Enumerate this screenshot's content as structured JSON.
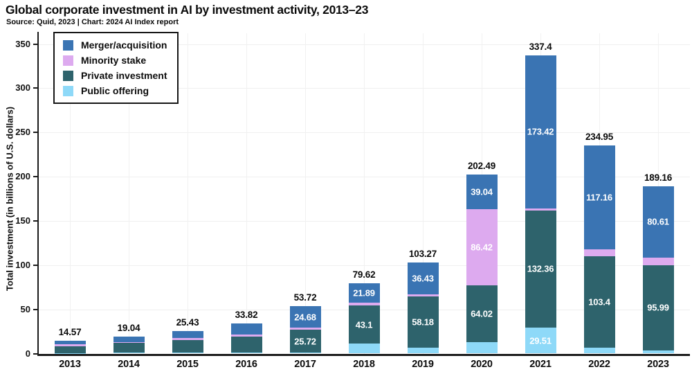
{
  "header": {
    "title": "Global corporate investment in AI by investment activity, 2013–23",
    "subtitle": "Source: Quid, 2023 | Chart: 2024 AI Index report"
  },
  "chart_data": {
    "type": "bar",
    "stacked": true,
    "title": "Global corporate investment in AI by investment activity, 2013–23",
    "xlabel": "",
    "ylabel": "Total investment (in billions of U.S. dollars)",
    "ylim": [
      0,
      350
    ],
    "yticks": [
      0,
      50,
      100,
      150,
      200,
      250,
      300,
      350
    ],
    "grid": "faint horizontal gridlines every 50 and faint vertical gridlines at each year",
    "legend_position": "top-left boxed",
    "legend_order": [
      "Merger/acquisition",
      "Minority stake",
      "Private investment",
      "Public offering"
    ],
    "categories": [
      "2013",
      "2014",
      "2015",
      "2016",
      "2017",
      "2018",
      "2019",
      "2020",
      "2021",
      "2022",
      "2023"
    ],
    "totals": [
      "14.57",
      "19.04",
      "25.43",
      "33.82",
      "53.72",
      "79.62",
      "103.27",
      "202.49",
      "337.4",
      "234.95",
      "189.16"
    ],
    "series": [
      {
        "name": "Public offering",
        "color": "#8ed9f8",
        "values": [
          0.7,
          1.2,
          1.3,
          1.3,
          1.2,
          11.3,
          6.3,
          13.01,
          29.51,
          6.77,
          3.86
        ],
        "labels": [
          "",
          "",
          "",
          "",
          "",
          "",
          "",
          "",
          "29.51",
          "",
          ""
        ]
      },
      {
        "name": "Private investment",
        "color": "#2e636c",
        "values": [
          7.17,
          10.84,
          13.93,
          18.12,
          25.72,
          43.1,
          58.18,
          64.02,
          132.36,
          103.4,
          95.99
        ],
        "labels": [
          "",
          "",
          "",
          "",
          "25.72",
          "43.1",
          "58.18",
          "64.02",
          "132.36",
          "103.4",
          "95.99"
        ]
      },
      {
        "name": "Minority stake",
        "color": "#ddaaef",
        "values": [
          2.4,
          0.8,
          2.1,
          2.4,
          2.12,
          3.33,
          2.36,
          86.42,
          2.11,
          7.62,
          8.7
        ],
        "labels": [
          "",
          "",
          "",
          "",
          "",
          "",
          "",
          "86.42",
          "",
          "",
          ""
        ]
      },
      {
        "name": "Merger/acquisition",
        "color": "#3a74b3",
        "values": [
          4.3,
          6.2,
          8.1,
          12.0,
          24.68,
          21.89,
          36.43,
          39.04,
          173.42,
          117.16,
          80.61
        ],
        "labels": [
          "",
          "",
          "",
          "",
          "24.68",
          "21.89",
          "36.43",
          "39.04",
          "173.42",
          "117.16",
          "80.61"
        ]
      }
    ]
  }
}
